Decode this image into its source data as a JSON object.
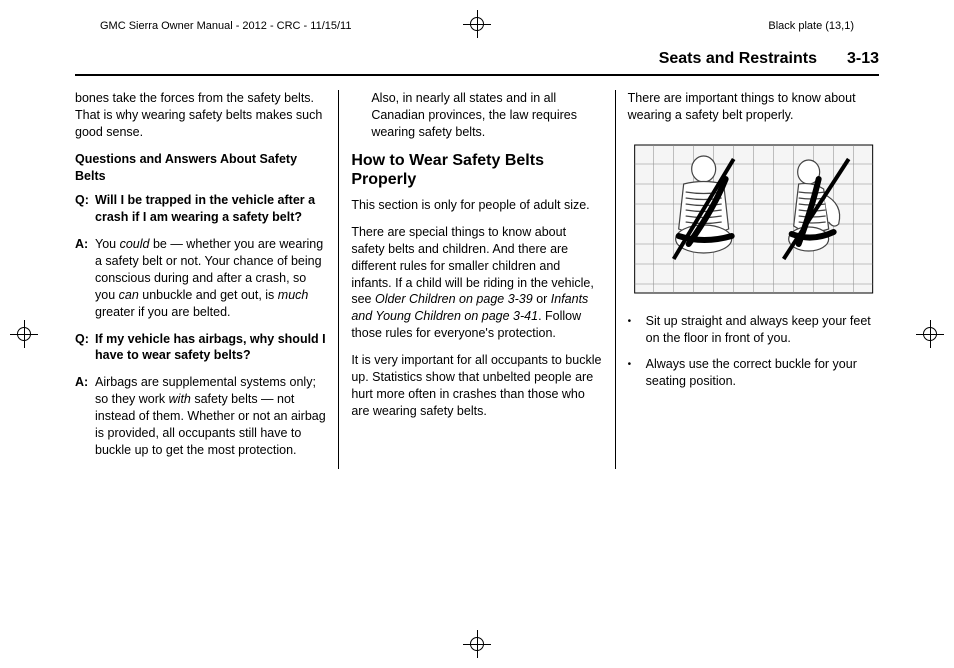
{
  "print": {
    "manual": "GMC Sierra Owner Manual - 2012 - CRC - 11/15/11",
    "plate": "Black plate (13,1)"
  },
  "header": {
    "section": "Seats and Restraints",
    "page": "3-13"
  },
  "col1": {
    "intro": "bones take the forces from the safety belts. That is why wearing safety belts makes such good sense.",
    "qa_head": "Questions and Answers About Safety Belts",
    "q1_label": "Q:",
    "q1": "Will I be trapped in the vehicle after a crash if I am wearing a safety belt?",
    "a1_label": "A:",
    "a1_pre": "You ",
    "a1_could": "could",
    "a1_mid1": " be — whether you are wearing a safety belt or not. Your chance of being conscious during and after a crash, so you ",
    "a1_can": "can",
    "a1_mid2": " unbuckle and get out, is ",
    "a1_much": "much",
    "a1_post": " greater if you are belted.",
    "q2_label": "Q:",
    "q2": "If my vehicle has airbags, why should I have to wear safety belts?",
    "a2_label": "A:",
    "a2_pre": "Airbags are supplemental systems only; so they work ",
    "a2_with": "with",
    "a2_post": " safety belts — not instead of them. Whether or not an airbag is provided, all occupants still have to buckle up to get the most protection."
  },
  "col2": {
    "p1": "Also, in nearly all states and in all Canadian provinces, the law requires wearing safety belts.",
    "h2": "How to Wear Safety Belts Properly",
    "p2": "This section is only for people of adult size.",
    "p3_pre": "There are special things to know about safety belts and children. And there are different rules for smaller children and infants. If a child will be riding in the vehicle, see ",
    "p3_link1": "Older Children on page 3-39",
    "p3_or": " or ",
    "p3_link2": "Infants and Young Children on page 3-41",
    "p3_post": ". Follow those rules for everyone's protection.",
    "p4": "It is very important for all occupants to buckle up. Statistics show that unbelted people are hurt more often in crashes than those who are wearing safety belts."
  },
  "col3": {
    "p1": "There are important things to know about wearing a safety belt properly.",
    "b1": "Sit up straight and always keep your feet on the floor in front of you.",
    "b2": "Always use the correct buckle for your seating position."
  },
  "figure": {
    "grid_color": "#888",
    "outline_color": "#444",
    "belt_color": "#000",
    "belt_width": 6,
    "wrong_mark_color": "#000",
    "wrong_mark_width": 4
  }
}
